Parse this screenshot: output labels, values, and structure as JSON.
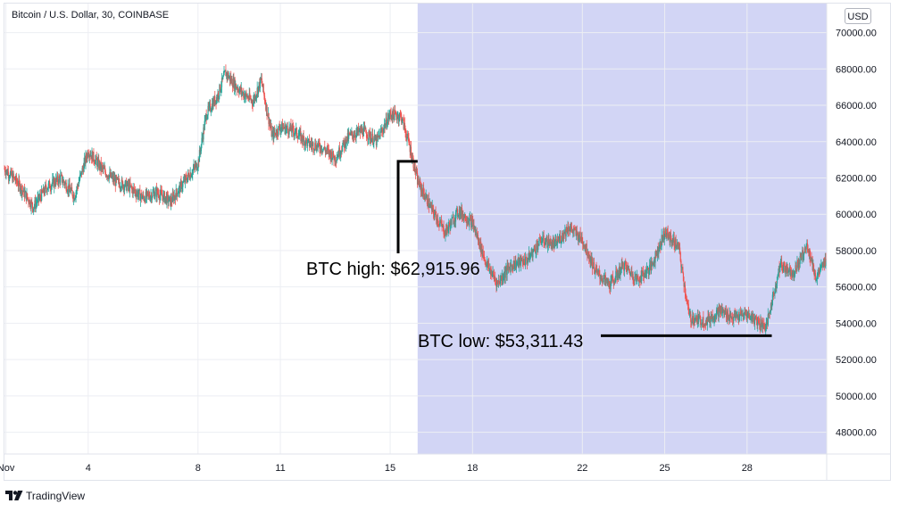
{
  "chart_title": "Bitcoin / U.S. Dollar, 30, COINBASE",
  "currency": "USD",
  "footer_brand": "TradingView",
  "colors": {
    "up": "#26a69a",
    "down": "#ef5350",
    "highlight": "#d2d5f5",
    "annotation": "#000000"
  },
  "chart_data": {
    "type": "candlestick",
    "x_ticks": [
      "Nov",
      "4",
      "8",
      "11",
      "15",
      "18",
      "22",
      "25",
      "28"
    ],
    "x_tick_days": [
      1,
      4,
      8,
      11,
      15,
      18,
      22,
      25,
      28
    ],
    "x_range_days": [
      0.95,
      30.9
    ],
    "y_ticks": [
      48000,
      50000,
      52000,
      54000,
      56000,
      58000,
      60000,
      62000,
      64000,
      66000,
      68000,
      70000
    ],
    "y_tick_labels": [
      "48000.00",
      "50000.00",
      "52000.00",
      "54000.00",
      "56000.00",
      "58000.00",
      "60000.00",
      "62000.00",
      "64000.00",
      "66000.00",
      "68000.00",
      "70000.00"
    ],
    "ylim": [
      46800,
      71600
    ],
    "grid": true,
    "highlight_range_days": [
      16.0,
      30.9
    ],
    "price_path": [
      [
        0.95,
        62500
      ],
      [
        1.4,
        61800
      ],
      [
        2.0,
        60400
      ],
      [
        2.5,
        61500
      ],
      [
        3.0,
        62000
      ],
      [
        3.5,
        61000
      ],
      [
        4.0,
        63500
      ],
      [
        4.5,
        62500
      ],
      [
        5.0,
        61800
      ],
      [
        5.5,
        61500
      ],
      [
        6.0,
        60900
      ],
      [
        6.5,
        61200
      ],
      [
        7.0,
        60700
      ],
      [
        7.5,
        61800
      ],
      [
        8.0,
        62800
      ],
      [
        8.3,
        65500
      ],
      [
        8.7,
        66500
      ],
      [
        9.0,
        67800
      ],
      [
        9.3,
        67200
      ],
      [
        9.6,
        66700
      ],
      [
        10.0,
        66200
      ],
      [
        10.3,
        67400
      ],
      [
        10.5,
        65800
      ],
      [
        10.7,
        64300
      ],
      [
        11.0,
        64800
      ],
      [
        11.5,
        64600
      ],
      [
        12.0,
        63900
      ],
      [
        12.5,
        63700
      ],
      [
        13.0,
        63100
      ],
      [
        13.5,
        64300
      ],
      [
        14.0,
        64600
      ],
      [
        14.5,
        64000
      ],
      [
        15.0,
        65500
      ],
      [
        15.4,
        65400
      ],
      [
        15.7,
        63800
      ],
      [
        16.0,
        61800
      ],
      [
        16.5,
        60300
      ],
      [
        17.0,
        59000
      ],
      [
        17.5,
        60200
      ],
      [
        18.0,
        59500
      ],
      [
        18.5,
        57300
      ],
      [
        18.9,
        56200
      ],
      [
        19.4,
        57200
      ],
      [
        20.0,
        57500
      ],
      [
        20.5,
        58600
      ],
      [
        21.0,
        58300
      ],
      [
        21.5,
        59300
      ],
      [
        22.0,
        58600
      ],
      [
        22.5,
        56800
      ],
      [
        23.0,
        56100
      ],
      [
        23.5,
        57200
      ],
      [
        24.0,
        56400
      ],
      [
        24.5,
        57100
      ],
      [
        25.0,
        59000
      ],
      [
        25.5,
        58200
      ],
      [
        25.9,
        54300
      ],
      [
        26.5,
        54100
      ],
      [
        27.0,
        54700
      ],
      [
        27.5,
        54300
      ],
      [
        28.0,
        54500
      ],
      [
        28.7,
        53800
      ],
      [
        29.2,
        57200
      ],
      [
        29.7,
        56800
      ],
      [
        30.2,
        58300
      ],
      [
        30.5,
        56500
      ],
      [
        30.9,
        57500
      ]
    ],
    "annotations": [
      {
        "label": "BTC high: $62,915.96",
        "day": 16.0,
        "value": 62915.96
      },
      {
        "label": "BTC low: $53,311.43",
        "day": 28.9,
        "value": 53311.43
      }
    ]
  }
}
